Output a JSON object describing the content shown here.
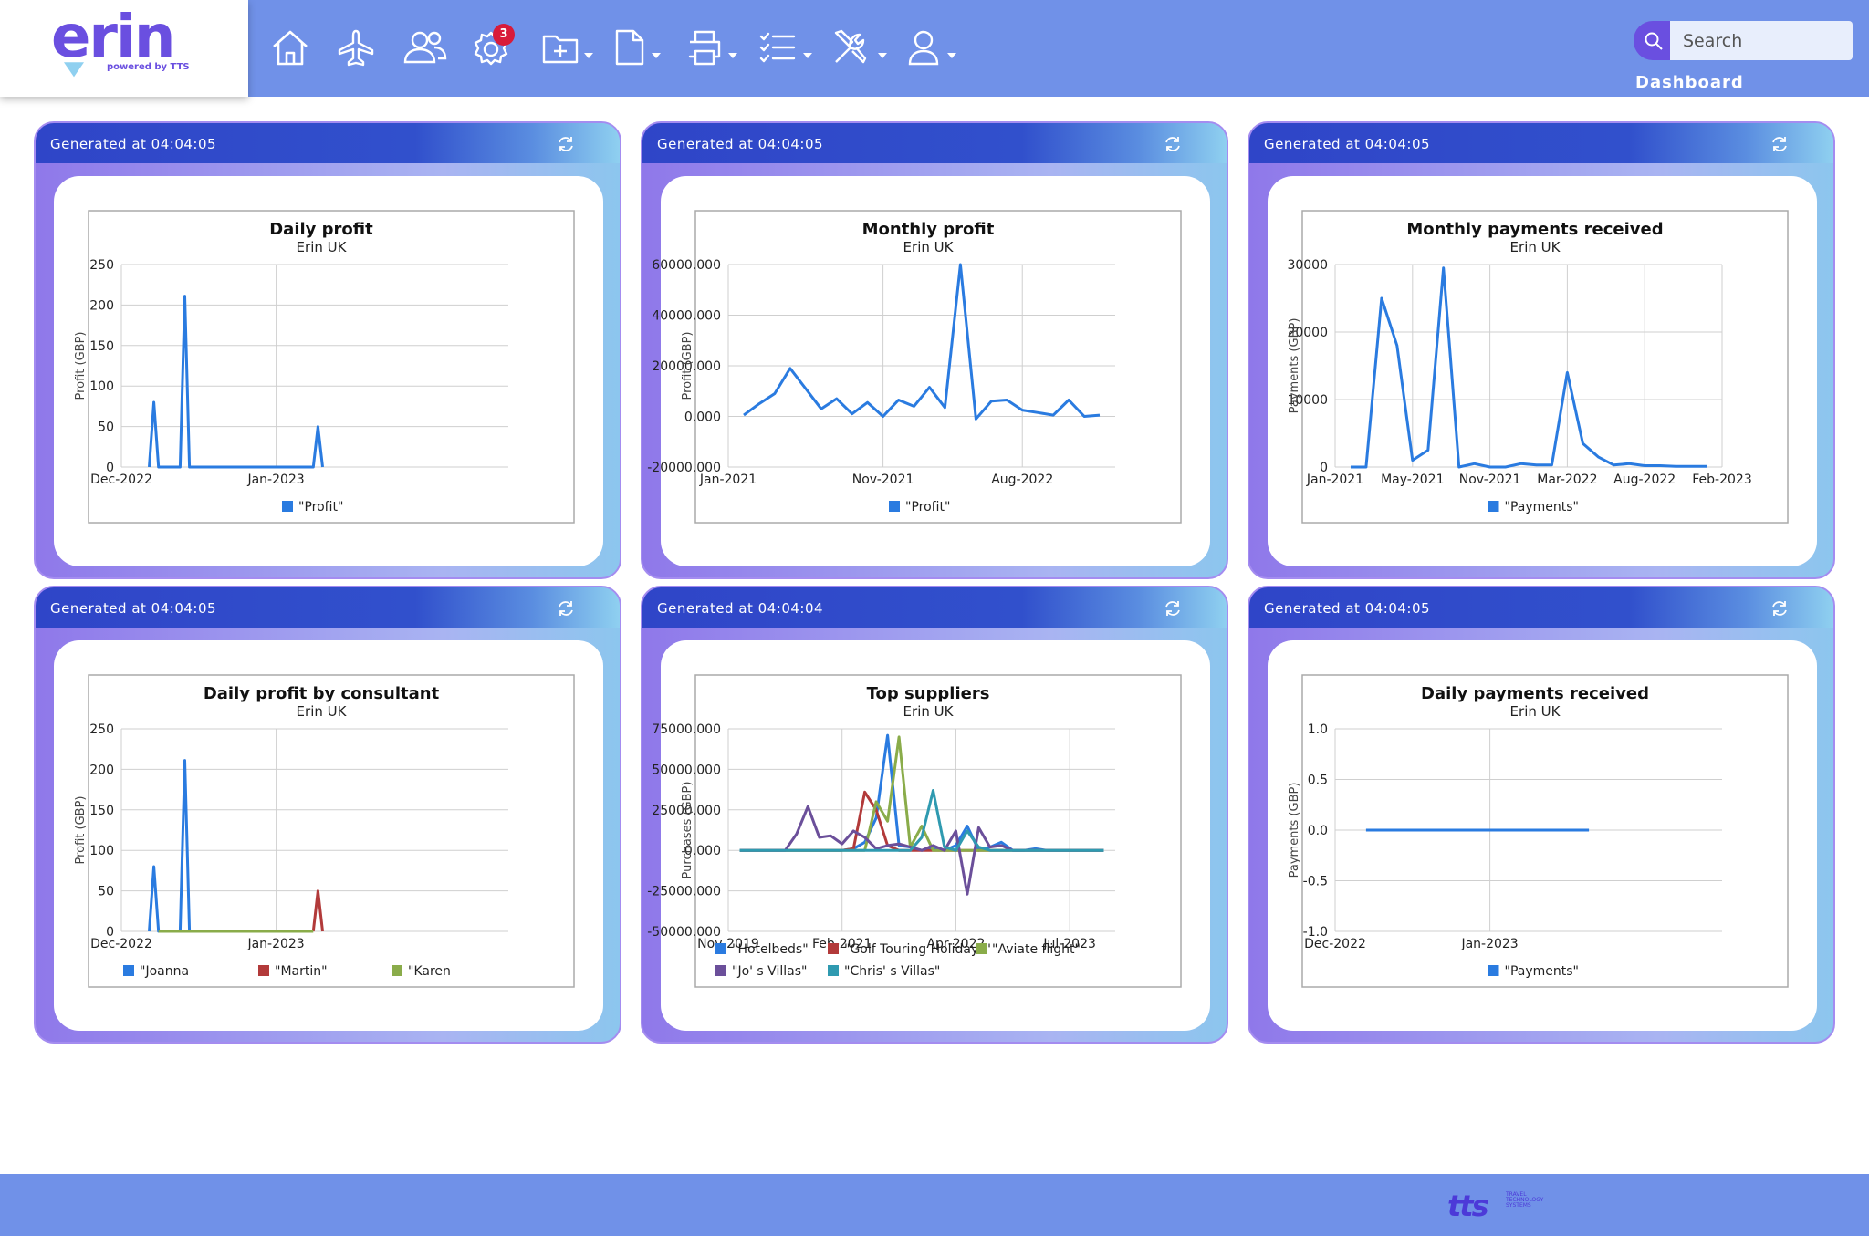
{
  "app": {
    "logo_text": "erin",
    "logo_sub": "powered by TTS",
    "page_label": "Dashboard"
  },
  "nav": {
    "items": [
      {
        "name": "home-icon",
        "label": "Home"
      },
      {
        "name": "plane-icon",
        "label": "Flights"
      },
      {
        "name": "users-icon",
        "label": "Clients"
      },
      {
        "name": "gear-icon",
        "label": "Settings",
        "badge": "3"
      },
      {
        "name": "folder-plus-icon",
        "label": "New"
      },
      {
        "name": "document-icon",
        "label": "Documents"
      },
      {
        "name": "printer-icon",
        "label": "Print"
      },
      {
        "name": "checklist-icon",
        "label": "Tasks"
      },
      {
        "name": "tools-icon",
        "label": "Tools"
      },
      {
        "name": "user-icon",
        "label": "Account"
      }
    ],
    "settings_badge": "3"
  },
  "search": {
    "placeholder": "Search"
  },
  "footer": {
    "logo_text": "tts",
    "logo_sub": "TRAVEL TECHNOLOGY SYSTEMS"
  },
  "colors": {
    "accent": "#6a4fe0",
    "bar": "#7091e8",
    "header": "#2f45c8",
    "blue": "#2a7be0",
    "red": "#b23a3a",
    "green": "#8aac4a",
    "purple": "#6b4f9a",
    "teal": "#2f9ab0"
  },
  "widgets": [
    {
      "header": "Generated at 04:04:05"
    },
    {
      "header": "Generated at 04:04:05"
    },
    {
      "header": "Generated at 04:04:05"
    },
    {
      "header": "Generated at 04:04:05"
    },
    {
      "header": "Generated at 04:04:04"
    },
    {
      "header": "Generated at 04:04:05"
    }
  ],
  "chart_data": [
    {
      "type": "line",
      "title": "Daily profit",
      "subtitle": "Erin UK",
      "ylabel": "Profit (GBP)",
      "xlabel": "",
      "ylim": [
        0,
        250
      ],
      "yticks": [
        0,
        50,
        100,
        150,
        200,
        250
      ],
      "ytick_labels": [
        "0",
        "50",
        "100",
        "150",
        "200",
        "250"
      ],
      "xlim": [
        0,
        12.5
      ],
      "xticks": [
        {
          "x": 0,
          "label": "Dec-2022"
        },
        {
          "x": 5,
          "label": "Jan-2023"
        }
      ],
      "series": [
        {
          "name": "\"Profit\"",
          "color": "#2a7be0",
          "x": [
            0.9,
            1.05,
            1.2,
            1.9,
            2.05,
            2.2,
            6.2,
            6.35,
            6.5
          ],
          "y": [
            0,
            80,
            0,
            0,
            211,
            0,
            0,
            50,
            0
          ]
        }
      ]
    },
    {
      "type": "line",
      "title": "Monthly profit",
      "subtitle": "Erin UK",
      "ylabel": "Profit (GBP)",
      "xlabel": "",
      "ylim": [
        -20000,
        60000
      ],
      "yticks": [
        -20000,
        0,
        20000,
        40000,
        60000
      ],
      "ytick_labels": [
        "-20000.000",
        "0.000",
        "20000.000",
        "40000.000",
        "60000.000"
      ],
      "xlim": [
        0,
        25
      ],
      "xticks": [
        {
          "x": 0,
          "label": "Jan-2021"
        },
        {
          "x": 10,
          "label": "Nov-2021"
        },
        {
          "x": 19,
          "label": "Aug-2022"
        }
      ],
      "series": [
        {
          "name": "\"Profit\"",
          "color": "#2a7be0",
          "x": [
            1,
            2,
            3,
            4,
            5,
            6,
            7,
            8,
            9,
            10,
            11,
            12,
            13,
            14,
            15,
            16,
            17,
            18,
            19,
            20,
            21,
            22,
            23,
            24
          ],
          "y": [
            500,
            5000,
            9000,
            19000,
            11000,
            3000,
            7000,
            1000,
            5500,
            0,
            6500,
            4000,
            11500,
            3500,
            60000,
            -1000,
            6000,
            6500,
            2500,
            1500,
            500,
            6500,
            0,
            500
          ]
        }
      ]
    },
    {
      "type": "line",
      "title": "Monthly payments received",
      "subtitle": "Erin UK",
      "ylabel": "Payments (GBP)",
      "xlabel": "",
      "ylim": [
        0,
        30000
      ],
      "yticks": [
        0,
        10000,
        20000,
        30000
      ],
      "ytick_labels": [
        "0",
        "10000",
        "20000",
        "30000"
      ],
      "xlim": [
        0,
        25
      ],
      "xticks": [
        {
          "x": 0,
          "label": "Jan-2021"
        },
        {
          "x": 5,
          "label": "May-2021"
        },
        {
          "x": 10,
          "label": "Nov-2021"
        },
        {
          "x": 15,
          "label": "Mar-2022"
        },
        {
          "x": 20,
          "label": "Aug-2022"
        },
        {
          "x": 25,
          "label": "Feb-2023"
        }
      ],
      "series": [
        {
          "name": "\"Payments\"",
          "color": "#2a7be0",
          "x": [
            1,
            2,
            3,
            4,
            5,
            6,
            7,
            8,
            9,
            10,
            11,
            12,
            13,
            14,
            15,
            16,
            17,
            18,
            19,
            20,
            21,
            22,
            23,
            24
          ],
          "y": [
            0,
            0,
            25000,
            18000,
            1000,
            2500,
            29500,
            0,
            500,
            0,
            0,
            500,
            300,
            300,
            14000,
            3500,
            1500,
            300,
            500,
            200,
            200,
            100,
            100,
            100
          ]
        }
      ]
    },
    {
      "type": "line",
      "title": "Daily profit by consultant",
      "subtitle": "Erin UK",
      "ylabel": "Profit (GBP)",
      "xlabel": "",
      "ylim": [
        0,
        250
      ],
      "yticks": [
        0,
        50,
        100,
        150,
        200,
        250
      ],
      "ytick_labels": [
        "0",
        "50",
        "100",
        "150",
        "200",
        "250"
      ],
      "xlim": [
        0,
        12.5
      ],
      "xticks": [
        {
          "x": 0,
          "label": "Dec-2022"
        },
        {
          "x": 5,
          "label": "Jan-2023"
        }
      ],
      "series": [
        {
          "name": "\"Joanna",
          "color": "#2a7be0",
          "x": [
            0.9,
            1.05,
            1.2,
            1.9,
            2.05,
            2.2
          ],
          "y": [
            0,
            80,
            0,
            0,
            211,
            0
          ]
        },
        {
          "name": "\"Martin\"",
          "color": "#b23a3a",
          "x": [
            6.2,
            6.35,
            6.5
          ],
          "y": [
            0,
            50,
            0
          ]
        },
        {
          "name": "\"Karen",
          "color": "#8aac4a",
          "x": [
            1.2,
            1.9,
            2.2,
            6.2
          ],
          "y": [
            0,
            0,
            0,
            0
          ]
        }
      ]
    },
    {
      "type": "line",
      "title": "Top suppliers",
      "subtitle": "Erin UK",
      "ylabel": "Purchases (GBP)",
      "xlabel": "",
      "ylim": [
        -50000,
        75000
      ],
      "yticks": [
        -50000,
        -25000,
        0,
        25000,
        50000,
        75000
      ],
      "ytick_labels": [
        "-50000.000",
        "-25000.000",
        "0.000",
        "25000.000",
        "50000.000",
        "75000.000"
      ],
      "xlim": [
        0,
        34
      ],
      "xticks": [
        {
          "x": 0,
          "label": "Nov-2019"
        },
        {
          "x": 10,
          "label": "Feb-2021"
        },
        {
          "x": 20,
          "label": "Apr-2022"
        },
        {
          "x": 30,
          "label": "Jul-2023"
        }
      ],
      "series": [
        {
          "name": "\"Hotelbeds\"",
          "color": "#2a7be0",
          "x": [
            1,
            9,
            10,
            11,
            12,
            13,
            14,
            15,
            16,
            17,
            18,
            19,
            20,
            21,
            22,
            23,
            24,
            25,
            26,
            27,
            28,
            29,
            30,
            31,
            32,
            33
          ],
          "y": [
            0,
            0,
            0,
            1000,
            5000,
            20000,
            71000,
            3000,
            2000,
            0,
            1000,
            0,
            3000,
            15000,
            0,
            2000,
            5000,
            0,
            0,
            1000,
            0,
            0,
            0,
            0,
            0,
            0
          ]
        },
        {
          "name": "\"Golf Touring Holidays\"",
          "color": "#b23a3a",
          "x": [
            1,
            9,
            10,
            11,
            12,
            13,
            14,
            15,
            16,
            17,
            18,
            19,
            20,
            21,
            22,
            33
          ],
          "y": [
            0,
            0,
            0,
            1000,
            36000,
            25000,
            3000,
            0,
            0,
            0,
            0,
            0,
            0,
            0,
            0,
            0
          ]
        },
        {
          "name": "\"Aviate flight\"",
          "color": "#8aac4a",
          "x": [
            1,
            11,
            12,
            13,
            14,
            15,
            16,
            17,
            18,
            19,
            20,
            33
          ],
          "y": [
            0,
            0,
            0,
            30000,
            18000,
            70000,
            2000,
            15000,
            0,
            0,
            0,
            0
          ]
        },
        {
          "name": "\"Jo' s Villas\"",
          "color": "#6b4f9a",
          "x": [
            1,
            5,
            6,
            7,
            8,
            9,
            10,
            11,
            12,
            13,
            14,
            15,
            16,
            17,
            18,
            19,
            20,
            21,
            22,
            23,
            24,
            25,
            33
          ],
          "y": [
            0,
            0,
            10000,
            27000,
            8000,
            9000,
            4000,
            12000,
            8000,
            1000,
            3000,
            4000,
            2000,
            0,
            3000,
            0,
            12000,
            -27000,
            14000,
            2000,
            3000,
            0,
            0
          ]
        },
        {
          "name": "\"Chris' s Villas\"",
          "color": "#2f9ab0",
          "x": [
            1,
            14,
            15,
            16,
            17,
            18,
            19,
            20,
            21,
            22,
            23,
            24,
            25,
            33
          ],
          "y": [
            0,
            0,
            0,
            0,
            8000,
            37000,
            2000,
            0,
            12000,
            2000,
            0,
            0,
            0,
            0
          ]
        }
      ]
    },
    {
      "type": "line",
      "title": "Daily payments received",
      "subtitle": "Erin UK",
      "ylabel": "Payments (GBP)",
      "xlabel": "",
      "ylim": [
        -1,
        1
      ],
      "yticks": [
        -1,
        -0.5,
        0,
        0.5,
        1
      ],
      "ytick_labels": [
        "-1.0",
        "-0.5",
        "0.0",
        "0.5",
        "1.0"
      ],
      "xlim": [
        0,
        12.5
      ],
      "xticks": [
        {
          "x": 0,
          "label": "Dec-2022"
        },
        {
          "x": 5,
          "label": "Jan-2023"
        }
      ],
      "series": [
        {
          "name": "\"Payments\"",
          "color": "#2a7be0",
          "x": [
            1.0,
            8.2
          ],
          "y": [
            0,
            0
          ]
        }
      ]
    }
  ]
}
